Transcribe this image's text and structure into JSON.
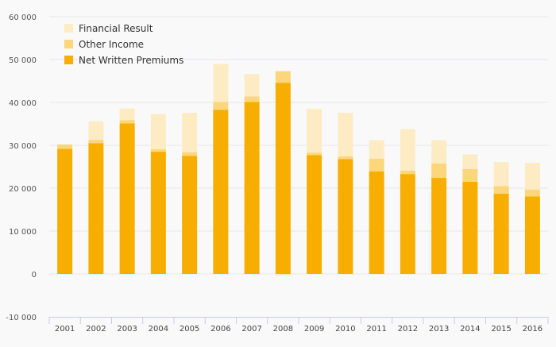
{
  "chart_data": {
    "type": "bar",
    "stacked": true,
    "categories": [
      "2001",
      "2002",
      "2003",
      "2004",
      "2005",
      "2006",
      "2007",
      "2008",
      "2009",
      "2010",
      "2011",
      "2012",
      "2013",
      "2014",
      "2015",
      "2016"
    ],
    "series": [
      {
        "name": "Net Written Premiums",
        "color": "#f7ae00",
        "values": [
          29200,
          30500,
          35100,
          28500,
          27500,
          38300,
          40100,
          44600,
          27700,
          26800,
          23900,
          23300,
          22400,
          21500,
          18700,
          18100
        ]
      },
      {
        "name": "Other Income",
        "color": "#fbd67a",
        "values": [
          1000,
          800,
          800,
          600,
          900,
          1800,
          1300,
          2700,
          600,
          600,
          3000,
          800,
          3400,
          3000,
          1800,
          1600
        ]
      },
      {
        "name": "Financial Result",
        "color": "#fdecc3",
        "values": [
          0,
          4300,
          2700,
          8200,
          9200,
          8900,
          5200,
          -400,
          10200,
          10200,
          4300,
          9700,
          5400,
          3400,
          5600,
          6200
        ]
      }
    ],
    "legend_order": [
      "Financial Result",
      "Other Income",
      "Net Written Premiums"
    ],
    "legend_position": "top-left",
    "ylim": [
      -10000,
      60000
    ],
    "yticks": [
      -10000,
      0,
      10000,
      20000,
      30000,
      40000,
      50000,
      60000
    ],
    "ytick_labels": [
      "-10 000",
      "0",
      "10 000",
      "20 000",
      "30 000",
      "40 000",
      "50 000",
      "60 000"
    ],
    "grid": true
  }
}
